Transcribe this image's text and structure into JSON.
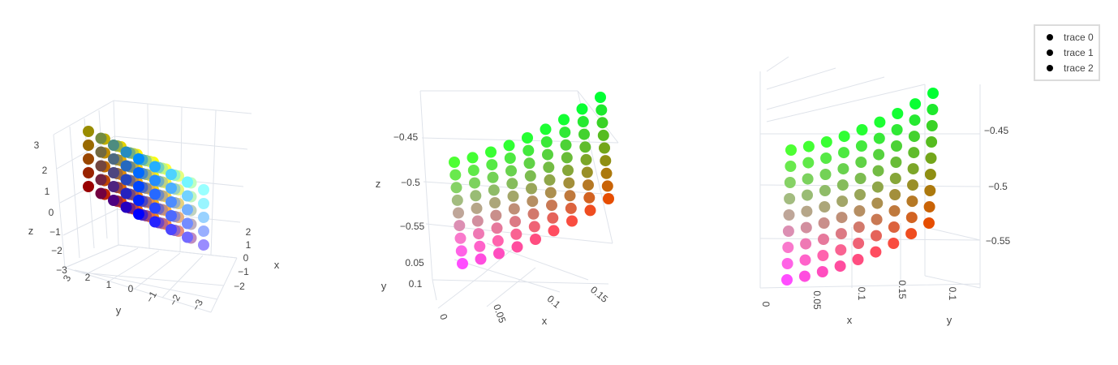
{
  "legend": {
    "items": [
      {
        "label": "trace 0",
        "color": "#000000"
      },
      {
        "label": "trace 1",
        "color": "#000000"
      },
      {
        "label": "trace 2",
        "color": "#000000"
      }
    ]
  },
  "chart_data": [
    {
      "type": "scatter3d",
      "description_of_points": "5x5x5 grid of points, colored by position (RGB cube)",
      "x_values": [
        -2,
        -1,
        0,
        1,
        2
      ],
      "y_values": [
        -2,
        -1,
        0,
        1,
        2
      ],
      "z_values": [
        -2,
        -1,
        0,
        1,
        2
      ],
      "xlabel": "x",
      "ylabel": "y",
      "zlabel": "z",
      "x_ticks": [
        "−2",
        "−1",
        "0",
        "1",
        "2"
      ],
      "y_ticks": [
        "−3",
        "−2",
        "−1",
        "0",
        "1",
        "2",
        "3"
      ],
      "z_ticks": [
        "−3",
        "−2",
        "−1",
        "0",
        "1",
        "2",
        "3"
      ]
    },
    {
      "type": "scatter3d",
      "description_of_points": "curved surface of colored points",
      "xlabel": "x",
      "ylabel": "y",
      "zlabel": "z",
      "x_ticks": [
        "0.05",
        "0.1",
        "0.15"
      ],
      "y_ticks": [
        "0.05",
        "0.1",
        "0"
      ],
      "z_ticks": [
        "−0.45",
        "−0.5",
        "−0.55"
      ]
    },
    {
      "type": "scatter3d",
      "description_of_points": "curved surface of colored points (rotated view)",
      "xlabel": "x",
      "ylabel": "y",
      "zlabel": "",
      "x_ticks": [
        "0",
        "0.05",
        "0.1",
        "0.15"
      ],
      "y_ticks": [
        "0.1"
      ],
      "z_ticks": [
        "−0.45",
        "−0.5",
        "−0.55"
      ]
    }
  ]
}
